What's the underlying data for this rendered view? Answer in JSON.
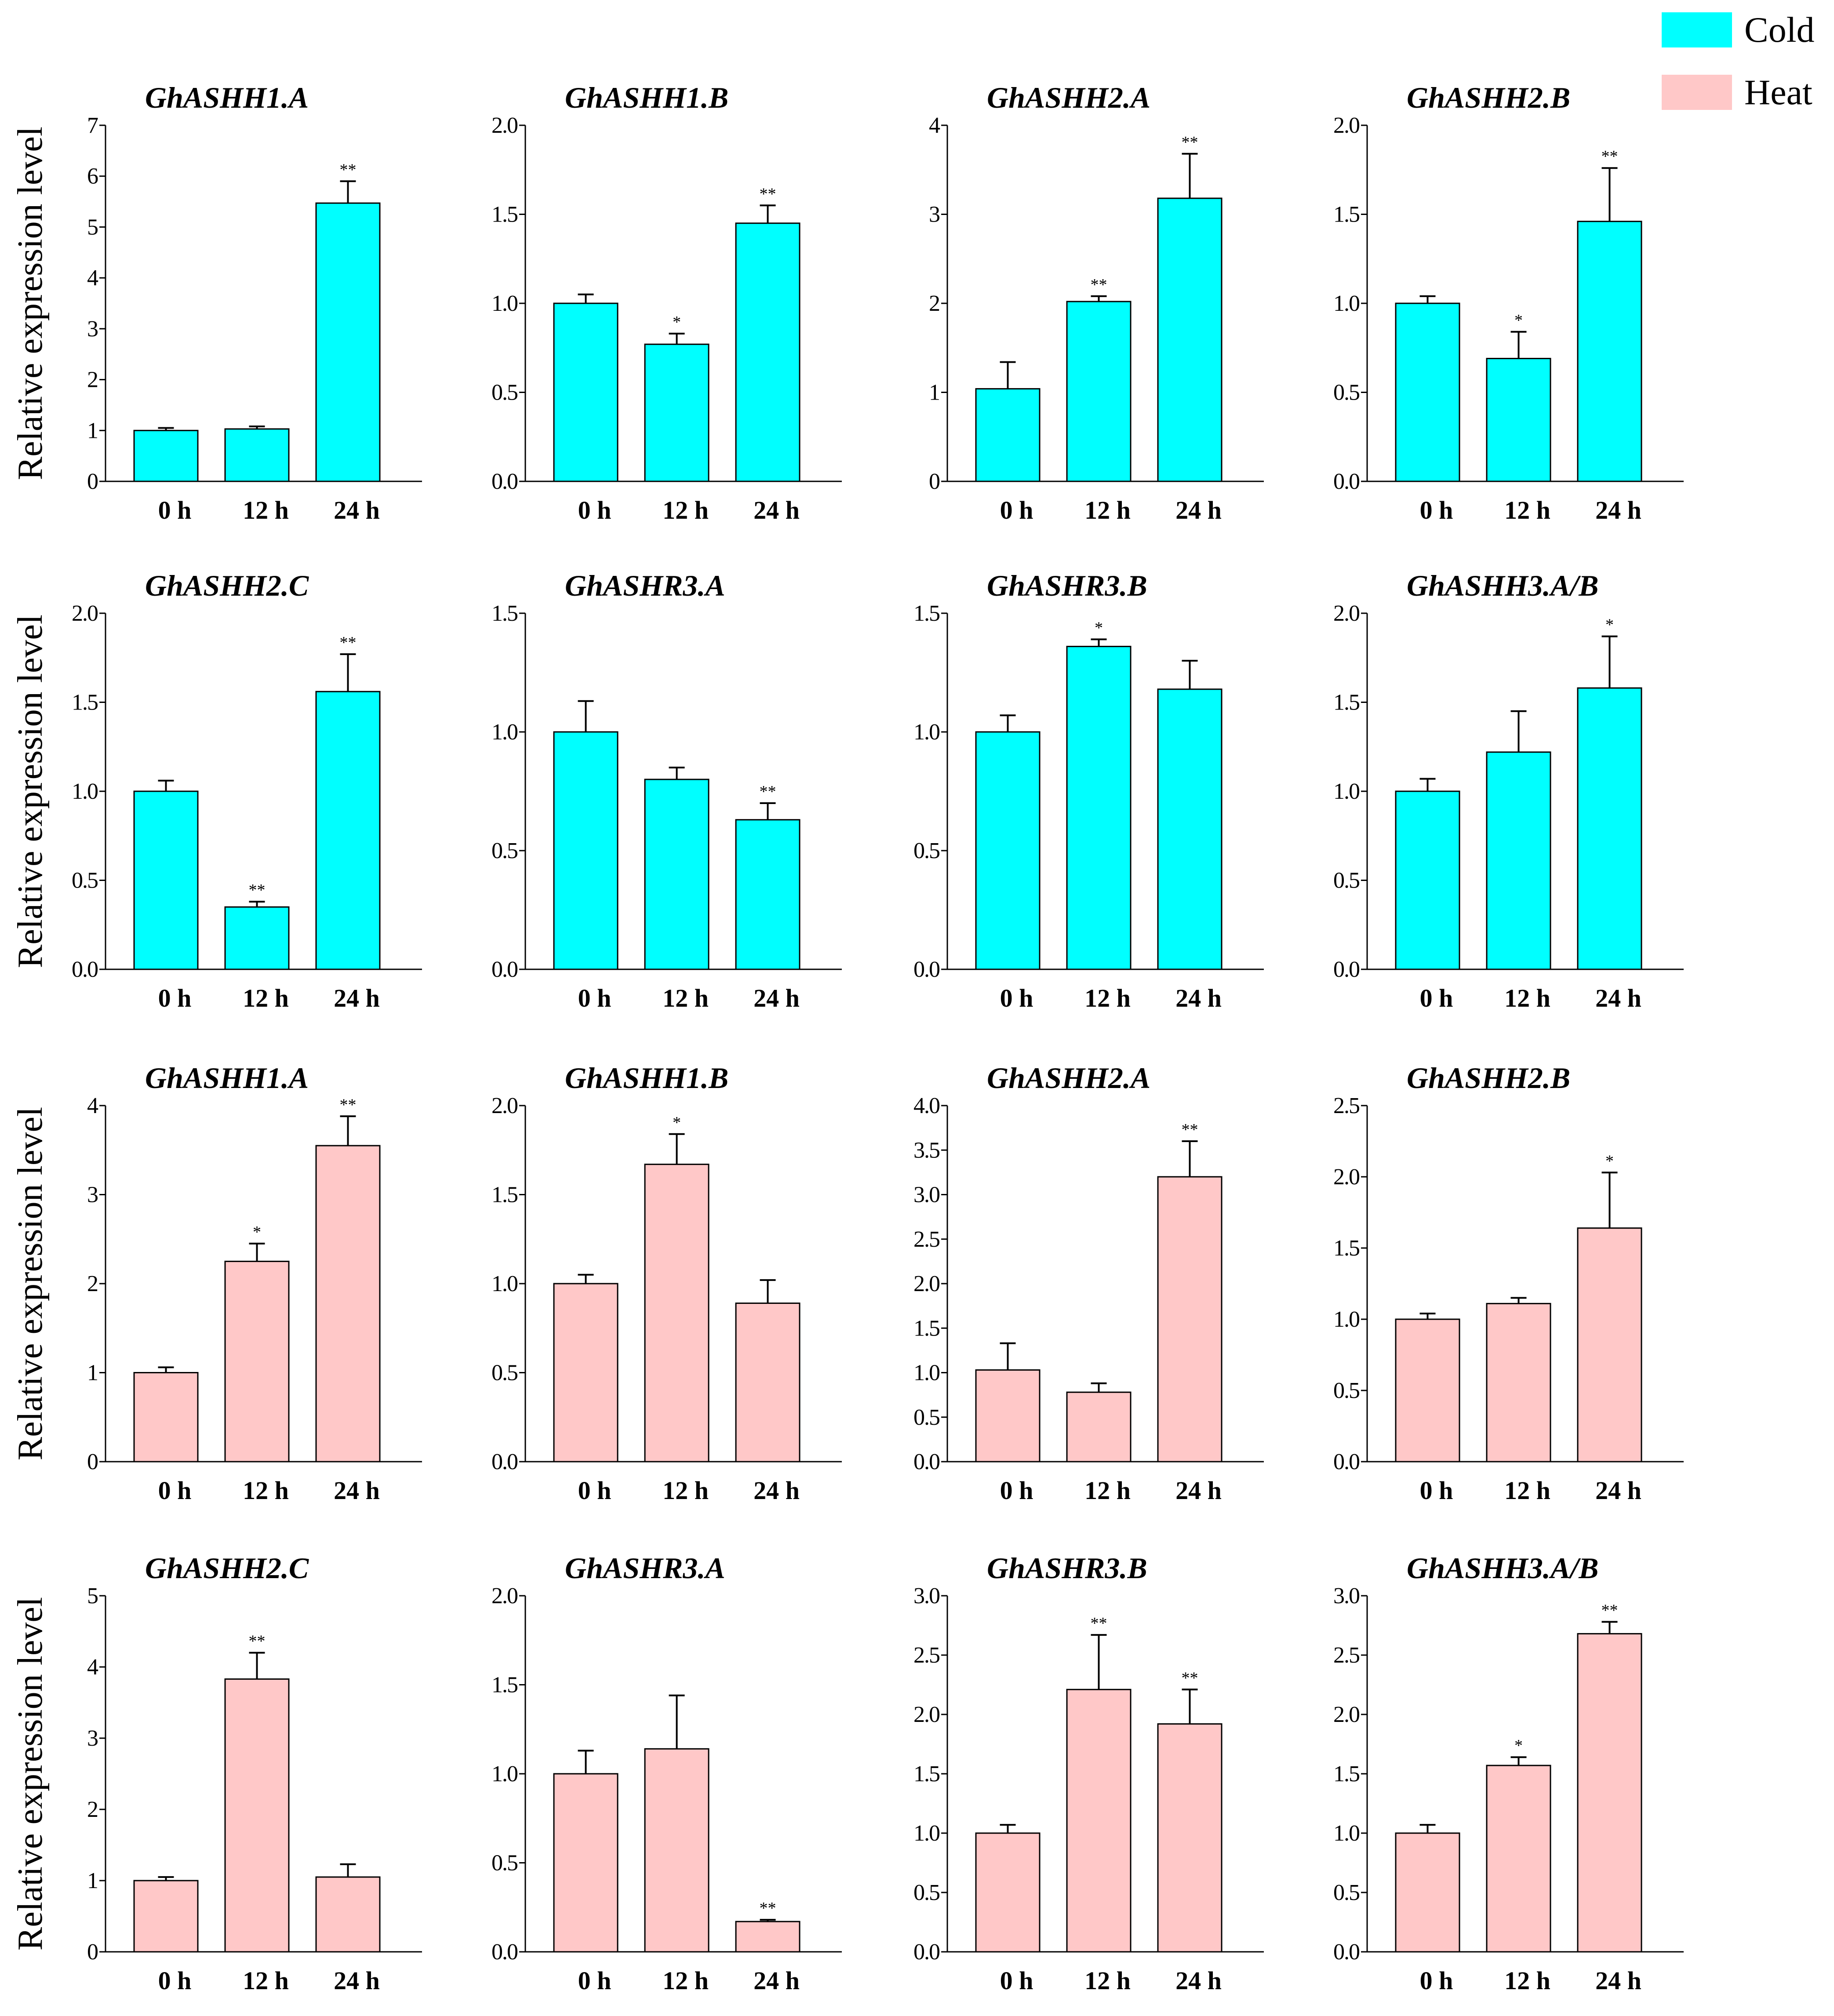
{
  "legend": [
    {
      "label": "Cold",
      "color": "#00FFFF"
    },
    {
      "label": "Heat",
      "color": "#FFC8C8"
    }
  ],
  "ylabel": "Relative expression level",
  "chart_data": [
    {
      "type": "bar",
      "title": "GhASHH1.A",
      "condition": "Cold",
      "categories": [
        "0 h",
        "12 h",
        "24 h"
      ],
      "values": [
        1.0,
        1.03,
        5.47
      ],
      "errors": [
        0.05,
        0.05,
        0.43
      ],
      "sig": [
        "",
        "",
        "**"
      ],
      "ylim": [
        0,
        7
      ],
      "yticks": [
        "0",
        "1",
        "2",
        "3",
        "4",
        "5",
        "6",
        "7"
      ],
      "xlabel": "",
      "ylabel": "Relative expression level"
    },
    {
      "type": "bar",
      "title": "GhASHH1.B",
      "condition": "Cold",
      "categories": [
        "0 h",
        "12 h",
        "24 h"
      ],
      "values": [
        1.0,
        0.77,
        1.45
      ],
      "errors": [
        0.05,
        0.06,
        0.1
      ],
      "sig": [
        "",
        "*",
        "**"
      ],
      "ylim": [
        0,
        2.0
      ],
      "yticks": [
        "0.0",
        "0.5",
        "1.0",
        "1.5",
        "2.0"
      ],
      "xlabel": "",
      "ylabel": ""
    },
    {
      "type": "bar",
      "title": "GhASHH2.A",
      "condition": "Cold",
      "categories": [
        "0 h",
        "12 h",
        "24 h"
      ],
      "values": [
        1.04,
        2.02,
        3.18
      ],
      "errors": [
        0.3,
        0.06,
        0.5
      ],
      "sig": [
        "",
        "**",
        "**"
      ],
      "ylim": [
        0,
        4
      ],
      "yticks": [
        "0",
        "1",
        "2",
        "3",
        "4"
      ],
      "xlabel": "",
      "ylabel": ""
    },
    {
      "type": "bar",
      "title": "GhASHH2.B",
      "condition": "Cold",
      "categories": [
        "0 h",
        "12 h",
        "24 h"
      ],
      "values": [
        1.0,
        0.69,
        1.46
      ],
      "errors": [
        0.04,
        0.15,
        0.3
      ],
      "sig": [
        "",
        "*",
        "**"
      ],
      "ylim": [
        0,
        2.0
      ],
      "yticks": [
        "0.0",
        "0.5",
        "1.0",
        "1.5",
        "2.0"
      ],
      "xlabel": "",
      "ylabel": ""
    },
    {
      "type": "bar",
      "title": "GhASHH2.C",
      "condition": "Cold",
      "categories": [
        "0 h",
        "12 h",
        "24 h"
      ],
      "values": [
        1.0,
        0.35,
        1.56
      ],
      "errors": [
        0.06,
        0.03,
        0.21
      ],
      "sig": [
        "",
        "**",
        "**"
      ],
      "ylim": [
        0,
        2.0
      ],
      "yticks": [
        "0.0",
        "0.5",
        "1.0",
        "1.5",
        "2.0"
      ],
      "xlabel": "",
      "ylabel": "Relative expression level"
    },
    {
      "type": "bar",
      "title": "GhASHR3.A",
      "condition": "Cold",
      "categories": [
        "0 h",
        "12 h",
        "24 h"
      ],
      "values": [
        1.0,
        0.8,
        0.63
      ],
      "errors": [
        0.13,
        0.05,
        0.07
      ],
      "sig": [
        "",
        "",
        "**"
      ],
      "ylim": [
        0,
        1.5
      ],
      "yticks": [
        "0.0",
        "0.5",
        "1.0",
        "1.5"
      ],
      "xlabel": "",
      "ylabel": ""
    },
    {
      "type": "bar",
      "title": "GhASHR3.B",
      "condition": "Cold",
      "categories": [
        "0 h",
        "12 h",
        "24 h"
      ],
      "values": [
        1.0,
        1.36,
        1.18
      ],
      "errors": [
        0.07,
        0.03,
        0.12
      ],
      "sig": [
        "",
        "*",
        ""
      ],
      "ylim": [
        0,
        1.5
      ],
      "yticks": [
        "0.0",
        "0.5",
        "1.0",
        "1.5"
      ],
      "xlabel": "",
      "ylabel": ""
    },
    {
      "type": "bar",
      "title": "GhASHH3.A/B",
      "condition": "Cold",
      "categories": [
        "0 h",
        "12 h",
        "24 h"
      ],
      "values": [
        1.0,
        1.22,
        1.58
      ],
      "errors": [
        0.07,
        0.23,
        0.29
      ],
      "sig": [
        "",
        "",
        "*"
      ],
      "ylim": [
        0,
        2.0
      ],
      "yticks": [
        "0.0",
        "0.5",
        "1.0",
        "1.5",
        "2.0"
      ],
      "xlabel": "",
      "ylabel": ""
    },
    {
      "type": "bar",
      "title": "GhASHH1.A",
      "condition": "Heat",
      "categories": [
        "0 h",
        "12 h",
        "24 h"
      ],
      "values": [
        1.0,
        2.25,
        3.55
      ],
      "errors": [
        0.06,
        0.2,
        0.33
      ],
      "sig": [
        "",
        "*",
        "**"
      ],
      "ylim": [
        0,
        4
      ],
      "yticks": [
        "0",
        "1",
        "2",
        "3",
        "4"
      ],
      "xlabel": "",
      "ylabel": "Relative expression level"
    },
    {
      "type": "bar",
      "title": "GhASHH1.B",
      "condition": "Heat",
      "categories": [
        "0 h",
        "12 h",
        "24 h"
      ],
      "values": [
        1.0,
        1.67,
        0.89
      ],
      "errors": [
        0.05,
        0.17,
        0.13
      ],
      "sig": [
        "",
        "*",
        ""
      ],
      "ylim": [
        0,
        2.0
      ],
      "yticks": [
        "0.0",
        "0.5",
        "1.0",
        "1.5",
        "2.0"
      ],
      "xlabel": "",
      "ylabel": ""
    },
    {
      "type": "bar",
      "title": "GhASHH2.A",
      "condition": "Heat",
      "categories": [
        "0 h",
        "12 h",
        "24 h"
      ],
      "values": [
        1.03,
        0.78,
        3.2
      ],
      "errors": [
        0.3,
        0.1,
        0.4
      ],
      "sig": [
        "",
        "",
        "**"
      ],
      "ylim": [
        0,
        4.0
      ],
      "yticks": [
        "0.0",
        "0.5",
        "1.0",
        "1.5",
        "2.0",
        "2.5",
        "3.0",
        "3.5",
        "4.0"
      ],
      "xlabel": "",
      "ylabel": ""
    },
    {
      "type": "bar",
      "title": "GhASHH2.B",
      "condition": "Heat",
      "categories": [
        "0 h",
        "12 h",
        "24 h"
      ],
      "values": [
        1.0,
        1.11,
        1.64
      ],
      "errors": [
        0.04,
        0.04,
        0.39
      ],
      "sig": [
        "",
        "",
        "*"
      ],
      "ylim": [
        0,
        2.5
      ],
      "yticks": [
        "0.0",
        "0.5",
        "1.0",
        "1.5",
        "2.0",
        "2.5"
      ],
      "xlabel": "",
      "ylabel": ""
    },
    {
      "type": "bar",
      "title": "GhASHH2.C",
      "condition": "Heat",
      "categories": [
        "0 h",
        "12 h",
        "24 h"
      ],
      "values": [
        1.0,
        3.83,
        1.05
      ],
      "errors": [
        0.05,
        0.37,
        0.18
      ],
      "sig": [
        "",
        "**",
        ""
      ],
      "ylim": [
        0,
        5
      ],
      "yticks": [
        "0",
        "1",
        "2",
        "3",
        "4",
        "5"
      ],
      "xlabel": "",
      "ylabel": "Relative expression level"
    },
    {
      "type": "bar",
      "title": "GhASHR3.A",
      "condition": "Heat",
      "categories": [
        "0 h",
        "12 h",
        "24 h"
      ],
      "values": [
        1.0,
        1.14,
        0.17
      ],
      "errors": [
        0.13,
        0.3,
        0.01
      ],
      "sig": [
        "",
        "",
        "**"
      ],
      "ylim": [
        0,
        2.0
      ],
      "yticks": [
        "0.0",
        "0.5",
        "1.0",
        "1.5",
        "2.0"
      ],
      "xlabel": "",
      "ylabel": ""
    },
    {
      "type": "bar",
      "title": "GhASHR3.B",
      "condition": "Heat",
      "categories": [
        "0 h",
        "12 h",
        "24 h"
      ],
      "values": [
        1.0,
        2.21,
        1.92
      ],
      "errors": [
        0.07,
        0.46,
        0.29
      ],
      "sig": [
        "",
        "**",
        "**"
      ],
      "ylim": [
        0,
        3.0
      ],
      "yticks": [
        "0.0",
        "0.5",
        "1.0",
        "1.5",
        "2.0",
        "2.5",
        "3.0"
      ],
      "xlabel": "",
      "ylabel": ""
    },
    {
      "type": "bar",
      "title": "GhASHH3.A/B",
      "condition": "Heat",
      "categories": [
        "0 h",
        "12 h",
        "24 h"
      ],
      "values": [
        1.0,
        1.57,
        2.68
      ],
      "errors": [
        0.07,
        0.07,
        0.1
      ],
      "sig": [
        "",
        "*",
        "**"
      ],
      "ylim": [
        0,
        3.0
      ],
      "yticks": [
        "0.0",
        "0.5",
        "1.0",
        "1.5",
        "2.0",
        "2.5",
        "3.0"
      ],
      "xlabel": "",
      "ylabel": ""
    }
  ]
}
